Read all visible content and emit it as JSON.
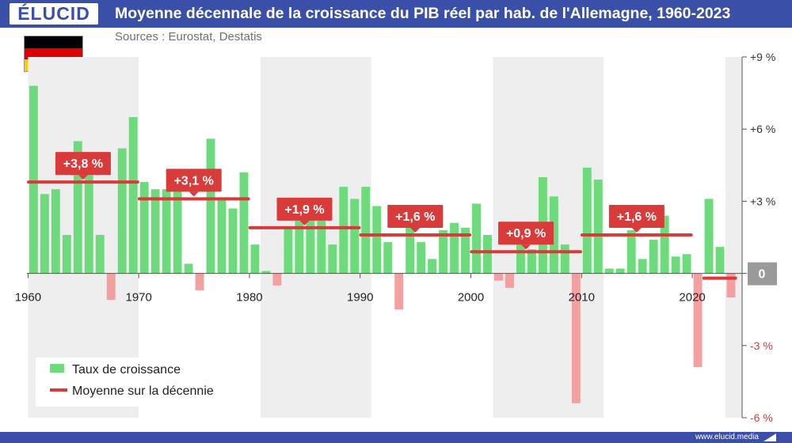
{
  "header": {
    "logo": "ÉLUCID",
    "title": "Moyenne décennale de la croissance du PIB réel par hab. de l'Allemagne, 1960-2023",
    "sources": "Sources : Eurostat, Destatis"
  },
  "footer": {
    "url": "www.elucid.media"
  },
  "colors": {
    "brand": "#3a50a8",
    "positive_bar": "#6ddb7b",
    "negative_bar": "#f2a0a0",
    "average_line": "#d93a3a",
    "decade_shade": "#eeeeee",
    "zero_badge": "#9a9a9a"
  },
  "flag": {
    "country": "Allemagne",
    "stripes": [
      "#000000",
      "#dd0000",
      "#ffce00"
    ]
  },
  "legend": {
    "bar_label": "Taux de croissance",
    "line_label": "Moyenne sur la décennie",
    "placement": "bottom-left"
  },
  "chart_data": {
    "type": "bar",
    "x_tick_labels": [
      "1960",
      "1970",
      "1980",
      "1990",
      "2000",
      "2010",
      "2020"
    ],
    "y_tick_labels": [
      "+9 %",
      "+6 %",
      "+3 %",
      "0",
      "-3 %",
      "-6 %"
    ],
    "y_ticks": [
      9,
      6,
      3,
      0,
      -3,
      -6
    ],
    "ylim": [
      -6,
      9
    ],
    "xlim": [
      1959.9,
      2024.5
    ],
    "grid": false,
    "years": [
      1960,
      1961,
      1962,
      1963,
      1964,
      1965,
      1966,
      1967,
      1968,
      1969,
      1970,
      1971,
      1972,
      1973,
      1974,
      1975,
      1976,
      1977,
      1978,
      1979,
      1980,
      1981,
      1982,
      1983,
      1984,
      1985,
      1986,
      1987,
      1988,
      1989,
      1990,
      1991,
      1992,
      1993,
      1994,
      1995,
      1996,
      1997,
      1998,
      1999,
      2000,
      2001,
      2002,
      2003,
      2004,
      2005,
      2006,
      2007,
      2008,
      2009,
      2010,
      2011,
      2012,
      2013,
      2014,
      2015,
      2016,
      2017,
      2018,
      2019,
      2020,
      2021,
      2022,
      2023
    ],
    "values": [
      7.8,
      3.3,
      3.5,
      1.6,
      5.5,
      4.7,
      1.6,
      -1.1,
      5.2,
      6.5,
      3.8,
      3.5,
      3.5,
      3.5,
      0.4,
      -0.7,
      5.6,
      3.1,
      2.7,
      4.2,
      1.2,
      0.1,
      -0.5,
      1.9,
      3.0,
      2.3,
      2.2,
      1.2,
      3.6,
      3.1,
      3.6,
      2.8,
      1.3,
      -1.5,
      2.2,
      1.3,
      0.6,
      1.8,
      2.1,
      1.9,
      2.9,
      1.6,
      -0.3,
      -0.6,
      1.3,
      1.0,
      4.0,
      3.2,
      1.2,
      -5.4,
      4.4,
      3.9,
      0.2,
      0.2,
      1.8,
      0.6,
      1.4,
      2.4,
      0.7,
      0.8,
      -3.9,
      3.1,
      1.1,
      -1.0
    ],
    "decade_averages": [
      {
        "label": "+3,8 %",
        "value": 3.8,
        "start": 1960,
        "end": 1969
      },
      {
        "label": "+3,1 %",
        "value": 3.1,
        "start": 1970,
        "end": 1979
      },
      {
        "label": "+1,9 %",
        "value": 1.9,
        "start": 1980,
        "end": 1989
      },
      {
        "label": "+1,6 %",
        "value": 1.6,
        "start": 1990,
        "end": 1999
      },
      {
        "label": "+0,9 %",
        "value": 0.9,
        "start": 2000,
        "end": 2009
      },
      {
        "label": "+1,6 %",
        "value": 1.6,
        "start": 2010,
        "end": 2019
      },
      {
        "label": "",
        "value": -0.2,
        "start": 2021,
        "end": 2023
      }
    ],
    "shaded_decades": [
      {
        "start": 1960,
        "end": 1970
      },
      {
        "start": 1981,
        "end": 1991
      },
      {
        "start": 2002,
        "end": 2012
      },
      {
        "start": 2023,
        "end": 2024.5
      }
    ]
  }
}
